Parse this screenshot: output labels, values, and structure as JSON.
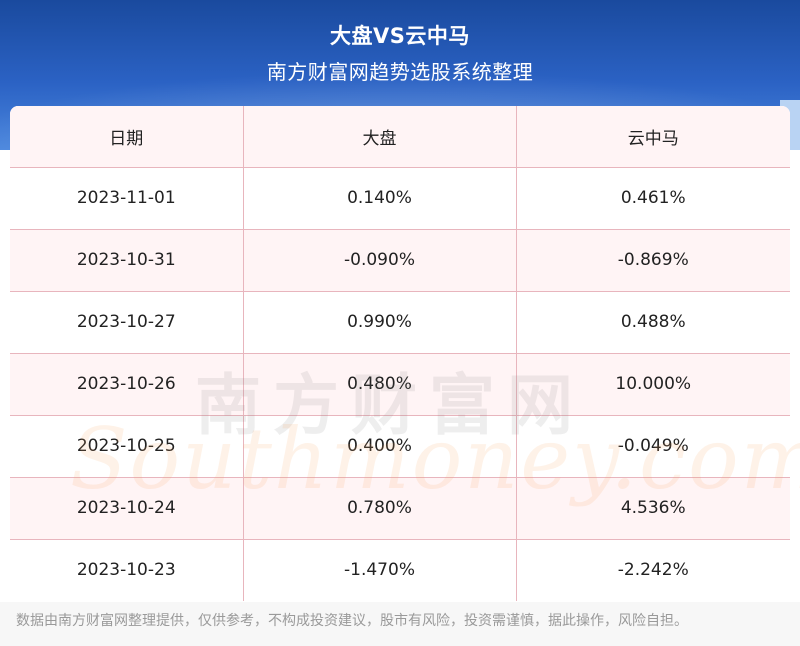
{
  "title": "大盘VS云中马",
  "subtitle": "南方财富网趋势选股系统整理",
  "table": {
    "headers": [
      "日期",
      "大盘",
      "云中马"
    ],
    "rows": [
      [
        "2023-11-01",
        "0.140%",
        "0.461%"
      ],
      [
        "2023-10-31",
        "-0.090%",
        "-0.869%"
      ],
      [
        "2023-10-27",
        "0.990%",
        "0.488%"
      ],
      [
        "2023-10-26",
        "0.480%",
        "10.000%"
      ],
      [
        "2023-10-25",
        "0.400%",
        "-0.049%"
      ],
      [
        "2023-10-24",
        "0.780%",
        "4.536%"
      ],
      [
        "2023-10-23",
        "-1.470%",
        "-2.242%"
      ]
    ]
  },
  "watermark": {
    "cn": "南方财富网",
    "en": "Southmoney.com"
  },
  "footer": "数据由南方财富网整理提供，仅供参考，不构成投资建议，股市有风险，投资需谨慎，据此操作，风险自担。"
}
